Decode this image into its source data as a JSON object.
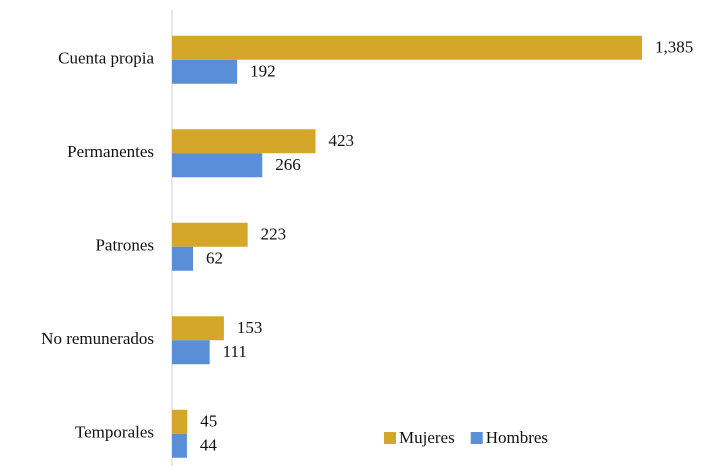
{
  "chart_data": {
    "type": "hbar",
    "categories": [
      "Cuenta propia",
      "Permanentes",
      "Patrones",
      "No remunerados",
      "Temporales"
    ],
    "series": [
      {
        "name": "Mujeres",
        "color": "#d4a62a",
        "values": [
          1385,
          423,
          223,
          153,
          45
        ],
        "value_labels": [
          "1,385",
          "423",
          "223",
          "153",
          "45"
        ]
      },
      {
        "name": "Hombres",
        "color": "#5a8fd8",
        "values": [
          192,
          266,
          62,
          111,
          44
        ],
        "value_labels": [
          "192",
          "266",
          "62",
          "111",
          "44"
        ]
      }
    ],
    "legend": "lower right"
  }
}
